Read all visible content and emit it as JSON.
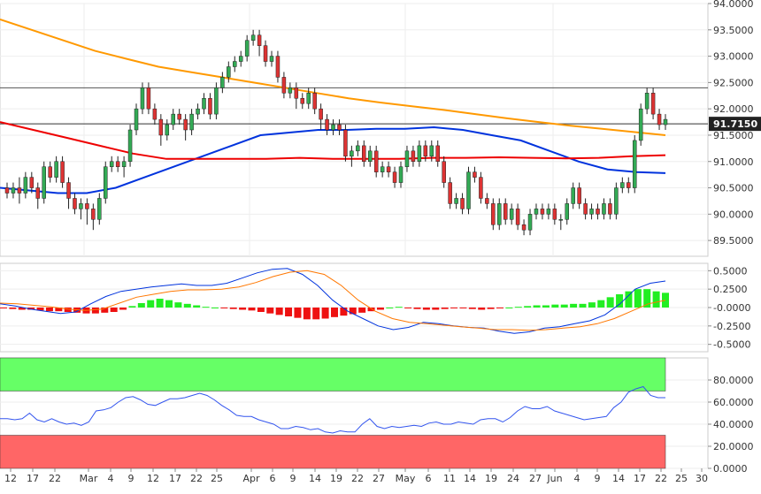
{
  "chart_data": [
    {
      "panel": "price",
      "type": "candlestick",
      "title": "",
      "ylim": [
        89.2,
        94.0
      ],
      "y_ticks": [
        "94.0000",
        "93.5000",
        "93.0000",
        "92.5000",
        "92.0000",
        "91.5000",
        "91.0000",
        "90.5000",
        "90.0000",
        "89.5000"
      ],
      "last_price_label": "91.7150",
      "last_price": 91.715,
      "horizontal_lines": [
        92.4,
        91.715
      ],
      "candles": [
        [
          90.5,
          90.4,
          90.6,
          90.3
        ],
        [
          90.4,
          90.5,
          90.6,
          90.3
        ],
        [
          90.5,
          90.4,
          90.7,
          90.2
        ],
        [
          90.4,
          90.7,
          90.8,
          90.3
        ],
        [
          90.7,
          90.5,
          90.8,
          90.4
        ],
        [
          90.5,
          90.3,
          90.6,
          90.1
        ],
        [
          90.3,
          90.9,
          91.0,
          90.2
        ],
        [
          90.9,
          90.7,
          91.0,
          90.6
        ],
        [
          90.7,
          91.0,
          91.1,
          90.6
        ],
        [
          91.0,
          90.6,
          91.1,
          90.5
        ],
        [
          90.6,
          90.3,
          90.7,
          90.1
        ],
        [
          90.3,
          90.1,
          90.4,
          90.0
        ],
        [
          90.1,
          90.2,
          90.3,
          89.9
        ],
        [
          90.2,
          90.1,
          90.3,
          89.8
        ],
        [
          90.1,
          89.9,
          90.2,
          89.7
        ],
        [
          89.9,
          90.3,
          90.4,
          89.8
        ],
        [
          90.3,
          90.9,
          91.0,
          90.2
        ],
        [
          90.9,
          91.0,
          91.1,
          90.8
        ],
        [
          91.0,
          90.9,
          91.1,
          90.8
        ],
        [
          90.9,
          91.0,
          91.1,
          90.7
        ],
        [
          91.0,
          91.6,
          91.7,
          90.9
        ],
        [
          91.6,
          92.0,
          92.1,
          91.5
        ],
        [
          92.0,
          92.4,
          92.5,
          91.9
        ],
        [
          92.4,
          92.0,
          92.5,
          91.9
        ],
        [
          92.0,
          91.8,
          92.1,
          91.7
        ],
        [
          91.8,
          91.5,
          91.9,
          91.3
        ],
        [
          91.5,
          91.7,
          91.8,
          91.4
        ],
        [
          91.7,
          91.9,
          92.0,
          91.6
        ],
        [
          91.9,
          91.8,
          92.0,
          91.7
        ],
        [
          91.8,
          91.6,
          91.9,
          91.4
        ],
        [
          91.6,
          91.9,
          92.0,
          91.5
        ],
        [
          91.9,
          92.0,
          92.1,
          91.8
        ],
        [
          92.0,
          92.2,
          92.3,
          91.9
        ],
        [
          92.2,
          91.9,
          92.3,
          91.8
        ],
        [
          91.9,
          92.4,
          92.5,
          91.8
        ],
        [
          92.4,
          92.6,
          92.7,
          92.3
        ],
        [
          92.6,
          92.8,
          92.9,
          92.5
        ],
        [
          92.8,
          92.9,
          93.0,
          92.7
        ],
        [
          92.9,
          93.0,
          93.1,
          92.8
        ],
        [
          93.0,
          93.3,
          93.4,
          92.9
        ],
        [
          93.3,
          93.4,
          93.5,
          93.2
        ],
        [
          93.4,
          93.2,
          93.5,
          93.0
        ],
        [
          93.2,
          92.9,
          93.3,
          92.8
        ],
        [
          92.9,
          93.0,
          93.1,
          92.8
        ],
        [
          93.0,
          92.6,
          93.1,
          92.5
        ],
        [
          92.6,
          92.3,
          92.7,
          92.2
        ],
        [
          92.3,
          92.4,
          92.5,
          92.2
        ],
        [
          92.4,
          92.2,
          92.5,
          92.0
        ],
        [
          92.2,
          92.1,
          92.3,
          92.0
        ],
        [
          92.1,
          92.3,
          92.4,
          92.0
        ],
        [
          92.3,
          92.0,
          92.4,
          91.9
        ],
        [
          92.0,
          91.8,
          92.1,
          91.6
        ],
        [
          91.8,
          91.6,
          91.9,
          91.5
        ],
        [
          91.6,
          91.7,
          91.8,
          91.5
        ],
        [
          91.7,
          91.6,
          91.8,
          91.5
        ],
        [
          91.6,
          91.1,
          91.7,
          91.0
        ],
        [
          91.1,
          91.2,
          91.3,
          90.9
        ],
        [
          91.2,
          91.3,
          91.4,
          91.1
        ],
        [
          91.3,
          91.0,
          91.4,
          90.9
        ],
        [
          91.0,
          91.2,
          91.3,
          90.9
        ],
        [
          91.2,
          90.8,
          91.3,
          90.7
        ],
        [
          90.8,
          90.9,
          91.0,
          90.7
        ],
        [
          90.9,
          90.8,
          91.0,
          90.7
        ],
        [
          90.8,
          90.6,
          90.9,
          90.5
        ],
        [
          90.6,
          90.9,
          91.0,
          90.5
        ],
        [
          90.9,
          91.2,
          91.3,
          90.8
        ],
        [
          91.2,
          91.0,
          91.3,
          90.9
        ],
        [
          91.0,
          91.3,
          91.4,
          90.9
        ],
        [
          91.3,
          91.1,
          91.4,
          91.0
        ],
        [
          91.1,
          91.3,
          91.4,
          91.0
        ],
        [
          91.3,
          91.0,
          91.4,
          90.9
        ],
        [
          91.0,
          90.6,
          91.1,
          90.5
        ],
        [
          90.6,
          90.2,
          90.7,
          90.1
        ],
        [
          90.2,
          90.3,
          90.4,
          90.1
        ],
        [
          90.3,
          90.1,
          90.4,
          90.0
        ],
        [
          90.1,
          90.8,
          90.9,
          90.0
        ],
        [
          90.8,
          90.7,
          90.9,
          90.6
        ],
        [
          90.7,
          90.3,
          90.8,
          90.2
        ],
        [
          90.3,
          90.2,
          90.4,
          90.1
        ],
        [
          90.2,
          89.8,
          90.3,
          89.7
        ],
        [
          89.8,
          90.2,
          90.3,
          89.7
        ],
        [
          90.2,
          89.9,
          90.3,
          89.8
        ],
        [
          89.9,
          90.1,
          90.2,
          89.8
        ],
        [
          90.1,
          89.8,
          90.2,
          89.7
        ],
        [
          89.8,
          89.7,
          89.9,
          89.6
        ],
        [
          89.7,
          90.0,
          90.1,
          89.6
        ],
        [
          90.0,
          90.1,
          90.2,
          89.9
        ],
        [
          90.1,
          90.0,
          90.2,
          89.9
        ],
        [
          90.0,
          90.1,
          90.2,
          89.9
        ],
        [
          90.1,
          89.9,
          90.2,
          89.8
        ],
        [
          89.9,
          89.9,
          90.0,
          89.7
        ],
        [
          89.9,
          90.2,
          90.3,
          89.8
        ],
        [
          90.2,
          90.5,
          90.6,
          90.1
        ],
        [
          90.5,
          90.2,
          90.6,
          90.1
        ],
        [
          90.2,
          90.0,
          90.3,
          89.9
        ],
        [
          90.0,
          90.1,
          90.2,
          89.9
        ],
        [
          90.1,
          90.0,
          90.2,
          89.9
        ],
        [
          90.0,
          90.2,
          90.3,
          89.9
        ],
        [
          90.2,
          90.0,
          90.3,
          89.9
        ],
        [
          90.0,
          90.5,
          90.6,
          89.9
        ],
        [
          90.5,
          90.6,
          90.7,
          90.4
        ],
        [
          90.6,
          90.5,
          90.7,
          90.4
        ],
        [
          90.5,
          91.4,
          91.5,
          90.4
        ],
        [
          91.4,
          92.0,
          92.1,
          91.3
        ],
        [
          92.0,
          92.3,
          92.4,
          91.9
        ],
        [
          92.3,
          91.9,
          92.4,
          91.8
        ],
        [
          91.9,
          91.7,
          92.0,
          91.6
        ],
        [
          91.7,
          91.8,
          91.9,
          91.6
        ]
      ],
      "moving_averages": [
        {
          "color": "#ff9900",
          "from": 93.7,
          "points": [
            93.7,
            93.5,
            93.3,
            93.1,
            92.95,
            92.8,
            92.7,
            92.6,
            92.5,
            92.4,
            92.3,
            92.2,
            92.12,
            92.05,
            91.98,
            91.9,
            91.82,
            91.75,
            91.68,
            91.62,
            91.56,
            91.5
          ]
        },
        {
          "color": "#0033dd",
          "points": [
            90.5,
            90.45,
            90.4,
            90.4,
            90.5,
            90.7,
            90.9,
            91.1,
            91.3,
            91.5,
            91.55,
            91.6,
            91.6,
            91.62,
            91.62,
            91.65,
            91.6,
            91.5,
            91.4,
            91.2,
            91.0,
            90.85,
            90.8,
            90.78
          ]
        },
        {
          "color": "#ee0000",
          "points": [
            91.75,
            91.6,
            91.45,
            91.3,
            91.15,
            91.05,
            91.05,
            91.05,
            91.05,
            91.07,
            91.05,
            91.05,
            91.05,
            91.07,
            91.07,
            91.08,
            91.07,
            91.06,
            91.07,
            91.1,
            91.12
          ]
        }
      ]
    },
    {
      "panel": "macd",
      "type": "bar+line",
      "ylim": [
        -0.6,
        0.6
      ],
      "y_ticks": [
        "0.5000",
        "0.2500",
        "-0.0000",
        "-0.2500",
        "-0.5000"
      ],
      "histogram": [
        -0.01,
        -0.02,
        -0.03,
        -0.03,
        -0.04,
        -0.05,
        -0.05,
        -0.06,
        -0.07,
        -0.08,
        -0.08,
        -0.07,
        -0.06,
        -0.03,
        0.02,
        0.06,
        0.1,
        0.12,
        0.1,
        0.07,
        0.05,
        0.03,
        0.01,
        0.0,
        -0.01,
        -0.02,
        -0.03,
        -0.04,
        -0.06,
        -0.08,
        -0.1,
        -0.12,
        -0.14,
        -0.16,
        -0.16,
        -0.15,
        -0.13,
        -0.11,
        -0.09,
        -0.07,
        -0.05,
        -0.03,
        0.0,
        0.01,
        -0.01,
        -0.02,
        -0.03,
        -0.03,
        -0.02,
        -0.01,
        -0.01,
        -0.02,
        -0.03,
        -0.02,
        -0.01,
        0.0,
        0.01,
        0.02,
        0.03,
        0.03,
        0.04,
        0.04,
        0.05,
        0.05,
        0.07,
        0.1,
        0.14,
        0.18,
        0.22,
        0.25,
        0.25,
        0.22,
        0.2
      ],
      "lines": [
        {
          "color": "#0033dd",
          "points": [
            0.05,
            0.02,
            -0.02,
            -0.05,
            -0.08,
            -0.06,
            0.05,
            0.15,
            0.22,
            0.25,
            0.28,
            0.3,
            0.32,
            0.3,
            0.3,
            0.33,
            0.4,
            0.47,
            0.52,
            0.53,
            0.45,
            0.3,
            0.1,
            -0.05,
            -0.15,
            -0.25,
            -0.3,
            -0.27,
            -0.2,
            -0.22,
            -0.25,
            -0.27,
            -0.28,
            -0.32,
            -0.35,
            -0.33,
            -0.28,
            -0.26,
            -0.22,
            -0.18,
            -0.1,
            0.05,
            0.25,
            0.33,
            0.36
          ]
        },
        {
          "color": "#ff7700",
          "points": [
            0.06,
            0.05,
            0.03,
            0.01,
            -0.02,
            -0.04,
            -0.02,
            0.06,
            0.14,
            0.18,
            0.22,
            0.24,
            0.24,
            0.25,
            0.28,
            0.34,
            0.42,
            0.48,
            0.5,
            0.45,
            0.3,
            0.1,
            -0.05,
            -0.15,
            -0.2,
            -0.22,
            -0.24,
            -0.26,
            -0.28,
            -0.3,
            -0.3,
            -0.31,
            -0.3,
            -0.28,
            -0.26,
            -0.22,
            -0.15,
            -0.05,
            0.05,
            0.1
          ]
        }
      ]
    },
    {
      "panel": "rsi",
      "type": "line",
      "ylim": [
        0,
        100
      ],
      "y_ticks": [
        "80.0000",
        "60.0000",
        "40.0000",
        "20.0000",
        "0.0000"
      ],
      "overbought_zone": [
        70,
        100
      ],
      "oversold_zone": [
        0,
        30
      ],
      "series": [
        {
          "color": "#3355ee",
          "values": [
            45,
            45,
            44,
            45,
            50,
            44,
            42,
            45,
            42,
            40,
            41,
            39,
            42,
            52,
            53,
            55,
            60,
            64,
            65,
            62,
            58,
            57,
            60,
            63,
            63,
            64,
            66,
            68,
            66,
            62,
            57,
            53,
            48,
            47,
            47,
            44,
            42,
            40,
            36,
            36,
            38,
            37,
            35,
            36,
            33,
            32,
            34,
            33,
            33,
            40,
            45,
            38,
            36,
            38,
            37,
            38,
            39,
            38,
            41,
            42,
            40,
            40,
            42,
            41,
            40,
            44,
            45,
            45,
            42,
            46,
            52,
            56,
            54,
            54,
            56,
            52,
            50,
            48,
            46,
            44,
            45,
            46,
            47,
            55,
            60,
            69,
            72,
            74,
            66,
            64,
            64
          ]
        }
      ],
      "zone_colors": {
        "upper": "#66ff66",
        "lower": "#ff6666"
      }
    }
  ],
  "x_axis": {
    "tick_labels": [
      "12",
      "17",
      "22",
      "Mar",
      "4",
      "9",
      "12",
      "17",
      "22",
      "25",
      "Apr",
      "6",
      "9",
      "14",
      "19",
      "22",
      "27",
      "May",
      "6",
      "11",
      "14",
      "19",
      "24",
      "27",
      "Jun",
      "4",
      "9",
      "14",
      "17",
      "22",
      "25",
      "30"
    ]
  }
}
